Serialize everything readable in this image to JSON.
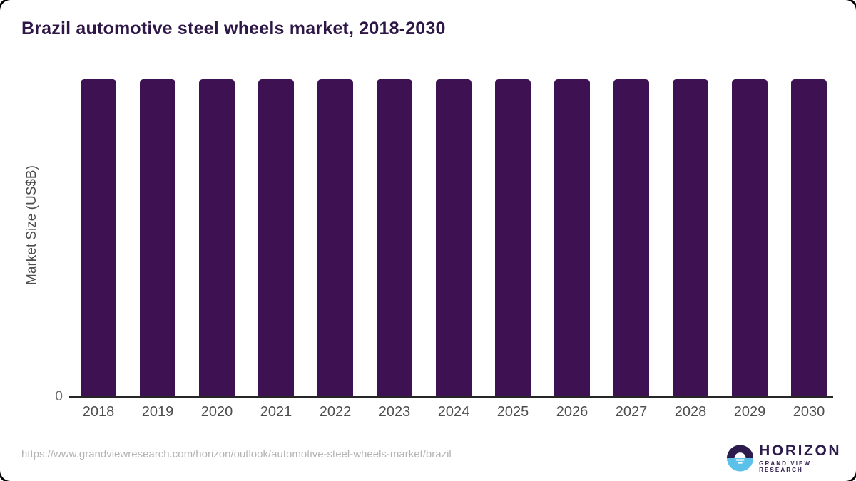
{
  "title": "Brazil automotive steel wheels market, 2018-2030",
  "footer": {
    "source_url": "https://www.grandviewresearch.com/horizon/outlook/automotive-steel-wheels-market/brazil"
  },
  "logo": {
    "name": "HORIZON",
    "subtitle": "GRAND VIEW RESEARCH",
    "icon": "horizon-sun-over-water-icon",
    "purple": "#2d1b4e",
    "blue": "#5cc1e9"
  },
  "colors": {
    "bar": "#3e1153",
    "title_text": "#2e1747",
    "axis_text": "#4d4d4d",
    "axis_line": "#262626",
    "url_text": "#b3b3b3"
  },
  "chart_data": {
    "type": "bar",
    "title": "Brazil automotive steel wheels market, 2018-2030",
    "categories": [
      "2018",
      "2019",
      "2020",
      "2021",
      "2022",
      "2023",
      "2024",
      "2025",
      "2026",
      "2027",
      "2028",
      "2029",
      "2030"
    ],
    "values": [
      1,
      1,
      1,
      1,
      1,
      1,
      1,
      1,
      1,
      1,
      1,
      1,
      1
    ],
    "xlabel": "",
    "ylabel": "Market Size (US$B)",
    "ylim": [
      0,
      1
    ],
    "y_tick_labels": [
      "0"
    ],
    "grid": false,
    "legend": false,
    "bar_color": "#3e1153",
    "note_layout": "all bars rendered at equal full height; y-axis shows only 0 tick"
  }
}
